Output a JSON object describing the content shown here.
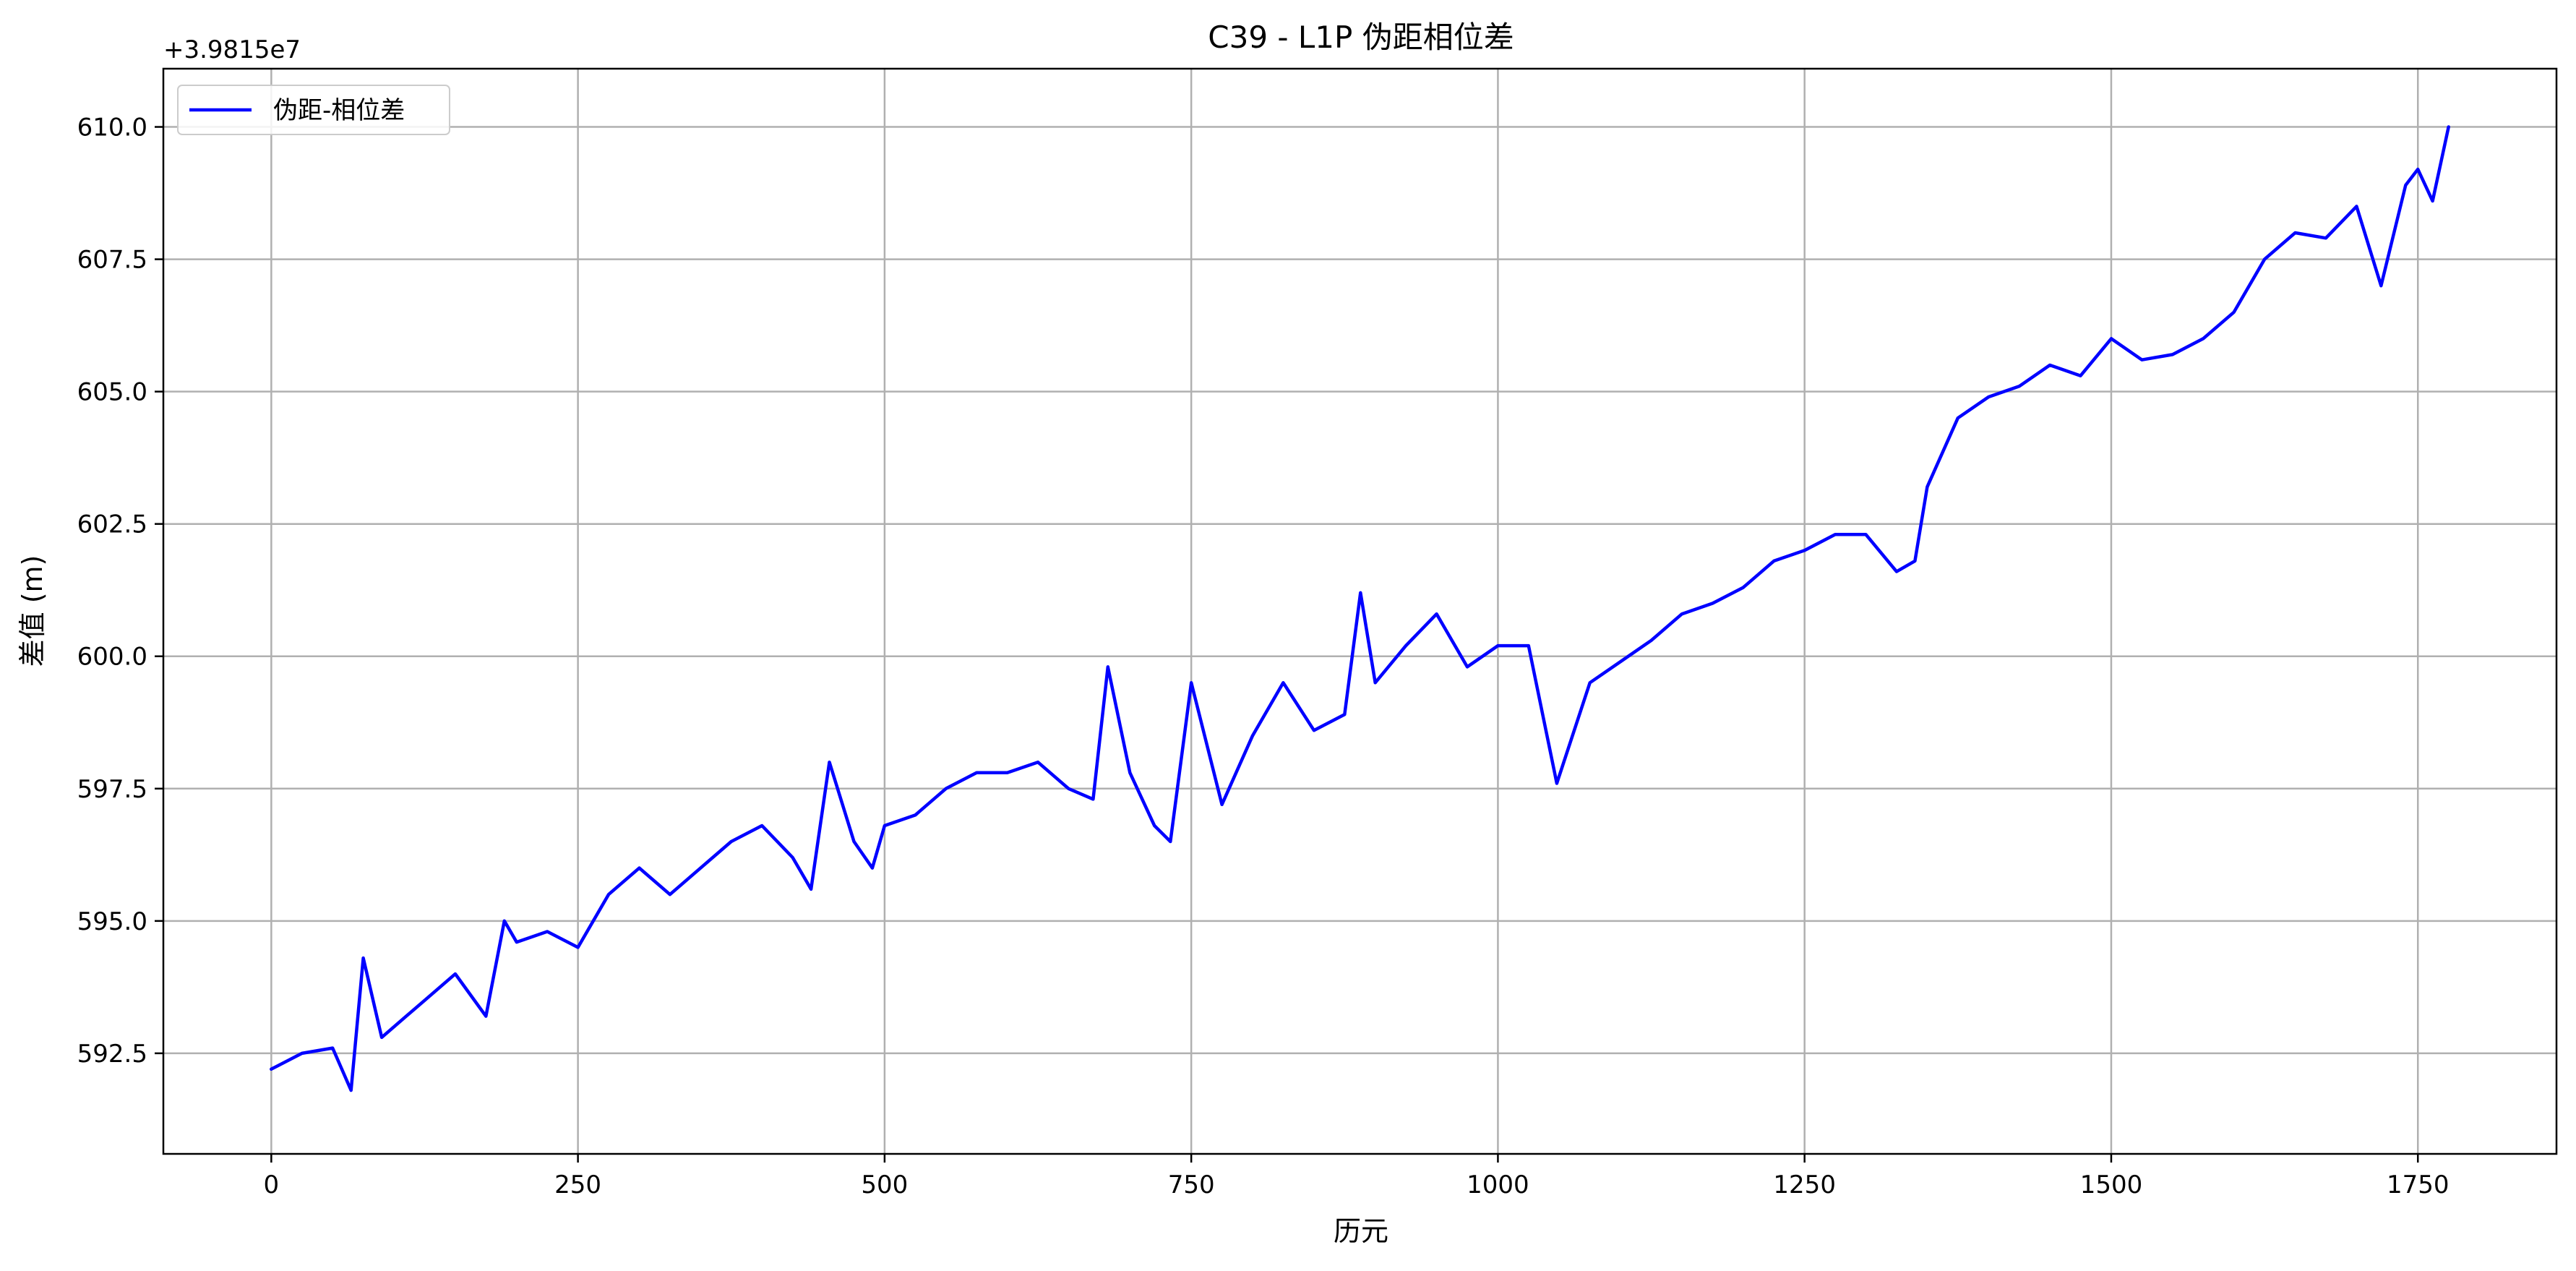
{
  "chart_data": {
    "type": "line",
    "title": "C39 - L1P 伪距相位差",
    "xlabel": "历元",
    "ylabel": "差值 (m)",
    "y_offset_label": "+3.9815e7",
    "y_offset": 39815000,
    "xlim": [
      -88,
      1863
    ],
    "ylim": [
      590.6,
      611.1
    ],
    "xticks": [
      0,
      250,
      500,
      750,
      1000,
      1250,
      1500,
      1750
    ],
    "xtick_labels": [
      "0",
      "250",
      "500",
      "750",
      "1000",
      "1250",
      "1500",
      "1750"
    ],
    "yticks": [
      592.5,
      595.0,
      597.5,
      600.0,
      602.5,
      605.0,
      607.5,
      610.0
    ],
    "ytick_labels": [
      "592.5",
      "595.0",
      "597.5",
      "600.0",
      "602.5",
      "605.0",
      "607.5",
      "610.0"
    ],
    "grid": true,
    "legend_position": "upper-left",
    "series": [
      {
        "name": "伪距-相位差",
        "color": "#0000ff",
        "x": [
          0,
          25,
          50,
          65,
          75,
          90,
          110,
          125,
          150,
          175,
          190,
          200,
          225,
          250,
          275,
          300,
          325,
          350,
          375,
          400,
          425,
          440,
          455,
          475,
          490,
          500,
          525,
          550,
          575,
          600,
          625,
          650,
          670,
          682,
          700,
          720,
          733,
          750,
          775,
          800,
          825,
          850,
          875,
          888,
          900,
          925,
          950,
          975,
          1000,
          1025,
          1048,
          1075,
          1100,
          1125,
          1150,
          1175,
          1200,
          1225,
          1250,
          1275,
          1300,
          1325,
          1340,
          1350,
          1375,
          1400,
          1425,
          1450,
          1475,
          1500,
          1525,
          1550,
          1575,
          1600,
          1625,
          1650,
          1675,
          1700,
          1720,
          1740,
          1750,
          1762,
          1775
        ],
        "y": [
          592.2,
          592.5,
          592.6,
          591.8,
          594.3,
          592.8,
          593.2,
          593.5,
          594.0,
          593.2,
          595.0,
          594.6,
          594.8,
          594.5,
          595.5,
          596.0,
          595.5,
          596.0,
          596.5,
          596.8,
          596.2,
          595.6,
          598.0,
          596.5,
          596.0,
          596.8,
          597.0,
          597.5,
          597.8,
          597.8,
          598.0,
          597.5,
          597.3,
          599.8,
          597.8,
          596.8,
          596.5,
          599.5,
          597.2,
          598.5,
          599.5,
          598.6,
          598.9,
          601.2,
          599.5,
          600.2,
          600.8,
          599.8,
          600.2,
          600.2,
          597.6,
          599.5,
          599.9,
          600.3,
          600.8,
          601.0,
          601.3,
          601.8,
          602.0,
          602.3,
          602.3,
          601.6,
          601.8,
          603.2,
          604.5,
          604.9,
          605.1,
          605.5,
          605.3,
          606.0,
          605.6,
          605.7,
          606.0,
          606.5,
          607.5,
          608.0,
          607.9,
          608.5,
          607.0,
          608.9,
          609.2,
          608.6,
          610.0
        ]
      }
    ]
  }
}
